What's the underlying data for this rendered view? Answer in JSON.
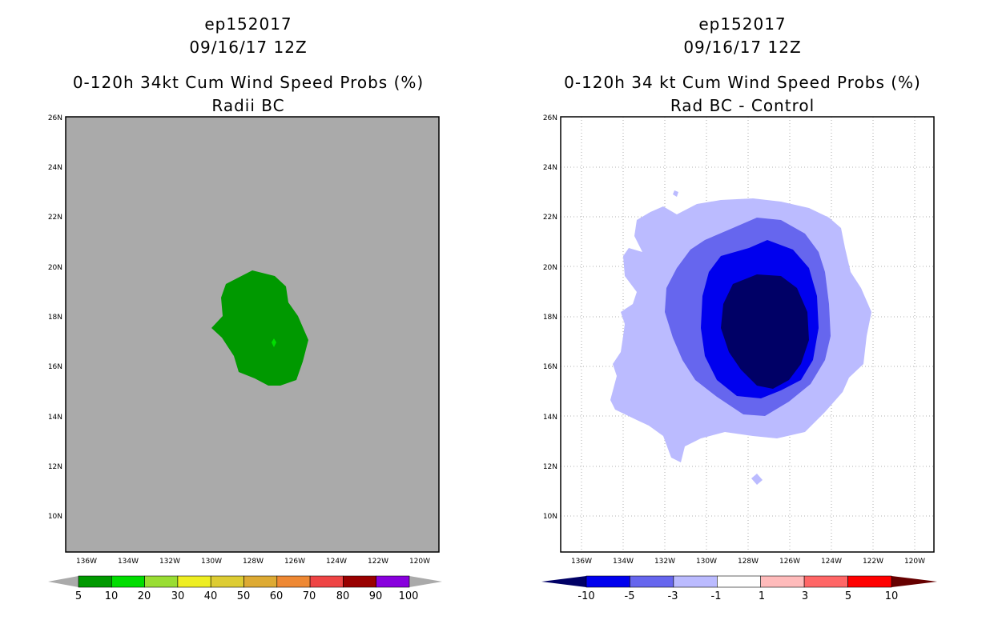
{
  "left": {
    "storm_id": "ep152017",
    "date": "09/16/17 12Z",
    "title": "0-120h 34kt Cum Wind Speed Probs (%)",
    "subtitle": "Radii BC",
    "background_color": "#aaaaaa",
    "legend_labels": [
      "5",
      "10",
      "20",
      "30",
      "40",
      "50",
      "60",
      "70",
      "80",
      "90",
      "100"
    ],
    "legend_colors": [
      "#009900",
      "#00dd00",
      "#99dd33",
      "#eeee22",
      "#ddcc33",
      "#ddaa33",
      "#ee8833",
      "#ee4444",
      "#990000",
      "#8800dd"
    ]
  },
  "right": {
    "storm_id": "ep152017",
    "date": "09/16/17 12Z",
    "title": "0-120h 34 kt Cum Wind Speed Probs (%)",
    "subtitle": "Rad BC - Control",
    "legend_labels": [
      "-10",
      "-5",
      "-3",
      "-1",
      "1",
      "3",
      "5",
      "10"
    ],
    "legend_colors": [
      "#0000ee",
      "#6666ee",
      "#bbbbff",
      "#ffffff",
      "#ffbbbb",
      "#ff6666",
      "#ff0000"
    ],
    "legend_end_colors": [
      "#000066",
      "#660000"
    ]
  },
  "axes": {
    "lat_labels": [
      "26N",
      "24N",
      "22N",
      "20N",
      "18N",
      "16N",
      "14N",
      "12N",
      "10N"
    ],
    "lon_labels": [
      "136W",
      "134W",
      "132W",
      "130W",
      "128W",
      "126W",
      "124W",
      "122W",
      "120W"
    ]
  },
  "chart_data": {
    "type": "filled-contour map",
    "lat_range": [
      8.6,
      26
    ],
    "lon_range": [
      -137.1,
      -119.3
    ],
    "panels": [
      {
        "name": "Radii BC",
        "levels": [
          5,
          10,
          20,
          30,
          40,
          50,
          60,
          70,
          80,
          90,
          100
        ],
        "region_5_10_center": [
          -127.0,
          17.5
        ],
        "region_10_20_point": [
          -127.0,
          17.0
        ]
      },
      {
        "name": "Rad BC - Control",
        "levels": [
          -10,
          -5,
          -3,
          -1,
          1,
          3,
          5,
          10
        ],
        "min_center": [
          -127.2,
          17.5
        ]
      }
    ]
  }
}
